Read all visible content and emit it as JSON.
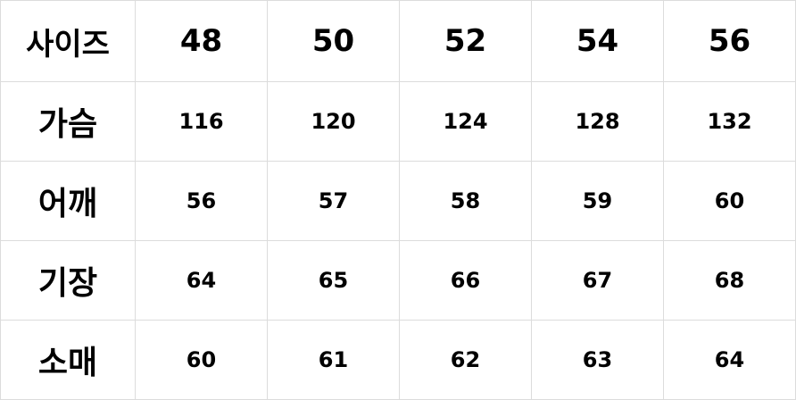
{
  "header": {
    "label": "사이즈",
    "sizes": [
      "48",
      "50",
      "52",
      "54",
      "56"
    ]
  },
  "rows": [
    {
      "label": "가슴",
      "values": [
        "116",
        "120",
        "124",
        "128",
        "132"
      ]
    },
    {
      "label": "어깨",
      "values": [
        "56",
        "57",
        "58",
        "59",
        "60"
      ]
    },
    {
      "label": "기장",
      "values": [
        "64",
        "65",
        "66",
        "67",
        "68"
      ]
    },
    {
      "label": "소매",
      "values": [
        "60",
        "61",
        "62",
        "63",
        "64"
      ]
    }
  ]
}
